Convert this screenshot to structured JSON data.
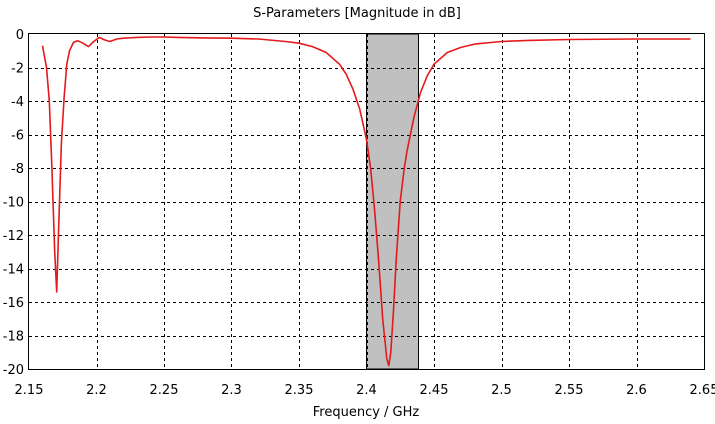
{
  "chart_data": {
    "type": "line",
    "title": "S-Parameters [Magnitude in dB]",
    "xlabel": "Frequency / GHz",
    "ylabel": "",
    "xlim": [
      2.15,
      2.65
    ],
    "ylim": [
      -20,
      0
    ],
    "xticks": [
      "2.15",
      "2.2",
      "2.25",
      "2.3",
      "2.35",
      "2.4",
      "2.45",
      "2.5",
      "2.55",
      "2.6",
      "2.65"
    ],
    "yticks": [
      "0",
      "-2",
      "-4",
      "-6",
      "-8",
      "-10",
      "-12",
      "-14",
      "-16",
      "-18",
      "-20"
    ],
    "grid": true,
    "highlight_band": {
      "x_start": 2.4,
      "x_end": 2.4385,
      "color": "#c0c0c0"
    },
    "series": [
      {
        "color": "#e41a1c",
        "x": [
          2.16,
          2.163,
          2.165,
          2.167,
          2.169,
          2.1705,
          2.172,
          2.174,
          2.176,
          2.178,
          2.18,
          2.183,
          2.186,
          2.19,
          2.194,
          2.198,
          2.202,
          2.206,
          2.21,
          2.215,
          2.22,
          2.23,
          2.24,
          2.25,
          2.26,
          2.28,
          2.3,
          2.32,
          2.34,
          2.35,
          2.36,
          2.37,
          2.38,
          2.385,
          2.39,
          2.395,
          2.4,
          2.403,
          2.406,
          2.409,
          2.412,
          2.415,
          2.4165,
          2.418,
          2.42,
          2.422,
          2.425,
          2.428,
          2.43,
          2.435,
          2.44,
          2.445,
          2.45,
          2.46,
          2.47,
          2.48,
          2.5,
          2.52,
          2.55,
          2.6,
          2.64
        ],
        "values": [
          -0.7,
          -2.0,
          -4.0,
          -8.0,
          -13.0,
          -15.4,
          -11.5,
          -6.5,
          -3.8,
          -1.8,
          -1.0,
          -0.5,
          -0.4,
          -0.55,
          -0.75,
          -0.45,
          -0.2,
          -0.35,
          -0.45,
          -0.3,
          -0.25,
          -0.2,
          -0.18,
          -0.18,
          -0.2,
          -0.23,
          -0.25,
          -0.3,
          -0.45,
          -0.55,
          -0.75,
          -1.1,
          -1.8,
          -2.4,
          -3.3,
          -4.5,
          -6.3,
          -8.0,
          -10.5,
          -13.5,
          -17.0,
          -19.4,
          -19.8,
          -19.0,
          -16.5,
          -13.5,
          -10.0,
          -8.0,
          -7.0,
          -5.0,
          -3.5,
          -2.5,
          -1.8,
          -1.1,
          -0.8,
          -0.6,
          -0.45,
          -0.38,
          -0.33,
          -0.3,
          -0.3
        ]
      }
    ]
  }
}
